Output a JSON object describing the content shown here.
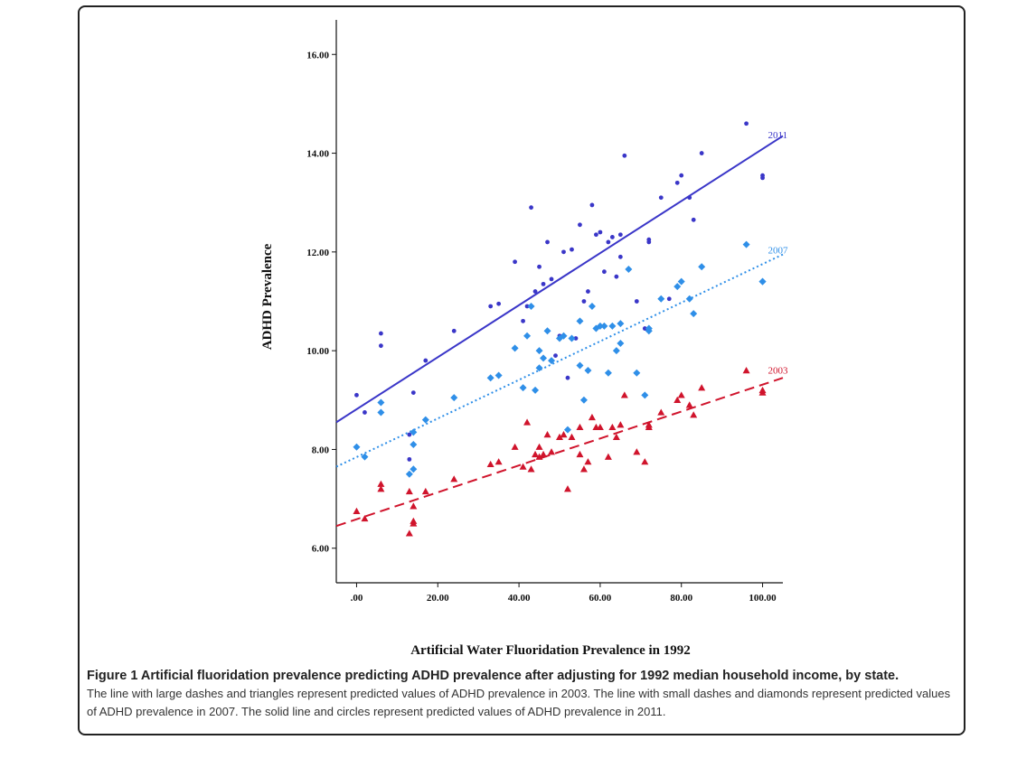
{
  "chart_data": {
    "type": "scatter",
    "xlabel": "Artificial Water Fluoridation Prevalence in 1992",
    "ylabel": "ADHD Prevalence",
    "xlim": [
      -5,
      105
    ],
    "ylim": [
      5.3,
      16.7
    ],
    "x_ticks": [
      0,
      20,
      40,
      60,
      80,
      100
    ],
    "x_tick_labels": [
      ".00",
      "20.00",
      "40.00",
      "60.00",
      "80.00",
      "100.00"
    ],
    "y_ticks": [
      6,
      8,
      10,
      12,
      14,
      16
    ],
    "y_tick_labels": [
      "6.00",
      "8.00",
      "10.00",
      "12.00",
      "14.00",
      "16.00"
    ],
    "grid": false,
    "series": [
      {
        "name": "2011",
        "marker": "circle",
        "color": "#3a36c8",
        "line_style": "solid",
        "fit": {
          "x0": -5,
          "y0": 8.55,
          "x1": 105,
          "y1": 14.35
        },
        "points": [
          [
            0,
            9.1
          ],
          [
            2,
            8.75
          ],
          [
            6,
            10.1
          ],
          [
            6,
            10.35
          ],
          [
            13,
            7.8
          ],
          [
            13,
            8.3
          ],
          [
            14,
            9.15
          ],
          [
            17,
            9.8
          ],
          [
            24,
            10.4
          ],
          [
            33,
            10.9
          ],
          [
            35,
            10.95
          ],
          [
            39,
            11.8
          ],
          [
            41,
            10.6
          ],
          [
            42,
            10.9
          ],
          [
            43,
            12.9
          ],
          [
            44,
            11.2
          ],
          [
            45,
            11.7
          ],
          [
            46,
            11.35
          ],
          [
            47,
            12.2
          ],
          [
            48,
            11.45
          ],
          [
            49,
            9.9
          ],
          [
            50,
            10.3
          ],
          [
            51,
            12.0
          ],
          [
            52,
            9.45
          ],
          [
            53,
            12.05
          ],
          [
            54,
            10.25
          ],
          [
            55,
            12.55
          ],
          [
            56,
            11.0
          ],
          [
            57,
            11.2
          ],
          [
            58,
            12.95
          ],
          [
            59,
            12.35
          ],
          [
            60,
            12.4
          ],
          [
            61,
            11.6
          ],
          [
            62,
            12.2
          ],
          [
            63,
            12.3
          ],
          [
            64,
            11.5
          ],
          [
            65,
            12.35
          ],
          [
            65,
            11.9
          ],
          [
            66,
            13.95
          ],
          [
            69,
            11.0
          ],
          [
            71,
            10.45
          ],
          [
            72,
            12.2
          ],
          [
            72,
            12.25
          ],
          [
            75,
            13.1
          ],
          [
            77,
            11.05
          ],
          [
            79,
            13.4
          ],
          [
            80,
            13.55
          ],
          [
            82,
            13.1
          ],
          [
            83,
            12.65
          ],
          [
            85,
            14.0
          ],
          [
            96,
            14.6
          ],
          [
            100,
            13.5
          ],
          [
            100,
            13.55
          ]
        ]
      },
      {
        "name": "2007",
        "marker": "diamond",
        "color": "#2f8fe8",
        "line_style": "dotted",
        "fit": {
          "x0": -5,
          "y0": 7.65,
          "x1": 105,
          "y1": 11.95
        },
        "points": [
          [
            0,
            8.05
          ],
          [
            2,
            7.85
          ],
          [
            6,
            8.75
          ],
          [
            6,
            8.95
          ],
          [
            13,
            7.5
          ],
          [
            14,
            7.6
          ],
          [
            14,
            8.1
          ],
          [
            14,
            8.35
          ],
          [
            17,
            8.6
          ],
          [
            24,
            9.05
          ],
          [
            33,
            9.45
          ],
          [
            35,
            9.5
          ],
          [
            39,
            10.05
          ],
          [
            41,
            9.25
          ],
          [
            42,
            10.3
          ],
          [
            43,
            10.9
          ],
          [
            44,
            9.2
          ],
          [
            45,
            9.65
          ],
          [
            45,
            10.0
          ],
          [
            46,
            9.85
          ],
          [
            47,
            10.4
          ],
          [
            48,
            9.8
          ],
          [
            50,
            10.25
          ],
          [
            51,
            10.3
          ],
          [
            52,
            8.4
          ],
          [
            53,
            10.25
          ],
          [
            55,
            10.6
          ],
          [
            55,
            9.7
          ],
          [
            56,
            9.0
          ],
          [
            57,
            9.6
          ],
          [
            58,
            10.9
          ],
          [
            59,
            10.45
          ],
          [
            60,
            10.5
          ],
          [
            61,
            10.5
          ],
          [
            62,
            9.55
          ],
          [
            63,
            10.5
          ],
          [
            64,
            10.0
          ],
          [
            65,
            10.15
          ],
          [
            65,
            10.55
          ],
          [
            67,
            11.65
          ],
          [
            69,
            9.55
          ],
          [
            71,
            9.1
          ],
          [
            72,
            10.4
          ],
          [
            72,
            10.45
          ],
          [
            75,
            11.05
          ],
          [
            79,
            11.3
          ],
          [
            80,
            11.4
          ],
          [
            82,
            11.05
          ],
          [
            83,
            10.75
          ],
          [
            85,
            11.7
          ],
          [
            96,
            12.15
          ],
          [
            100,
            11.4
          ],
          [
            100,
            11.4
          ]
        ]
      },
      {
        "name": "2003",
        "marker": "triangle",
        "color": "#d0142c",
        "line_style": "dashed",
        "fit": {
          "x0": -5,
          "y0": 6.45,
          "x1": 105,
          "y1": 9.45
        },
        "points": [
          [
            0,
            6.75
          ],
          [
            2,
            6.6
          ],
          [
            6,
            7.2
          ],
          [
            6,
            7.3
          ],
          [
            13,
            6.3
          ],
          [
            13,
            7.15
          ],
          [
            14,
            6.5
          ],
          [
            14,
            6.55
          ],
          [
            14,
            6.85
          ],
          [
            17,
            7.15
          ],
          [
            24,
            7.4
          ],
          [
            33,
            7.7
          ],
          [
            35,
            7.75
          ],
          [
            39,
            8.05
          ],
          [
            41,
            7.65
          ],
          [
            42,
            8.55
          ],
          [
            43,
            7.6
          ],
          [
            44,
            7.9
          ],
          [
            45,
            8.05
          ],
          [
            45,
            7.85
          ],
          [
            46,
            7.9
          ],
          [
            47,
            8.3
          ],
          [
            48,
            7.95
          ],
          [
            50,
            8.25
          ],
          [
            51,
            8.3
          ],
          [
            52,
            7.2
          ],
          [
            53,
            8.25
          ],
          [
            55,
            8.45
          ],
          [
            55,
            7.9
          ],
          [
            56,
            7.6
          ],
          [
            57,
            7.75
          ],
          [
            58,
            8.65
          ],
          [
            59,
            8.45
          ],
          [
            60,
            8.45
          ],
          [
            62,
            7.85
          ],
          [
            63,
            8.45
          ],
          [
            64,
            8.25
          ],
          [
            65,
            8.5
          ],
          [
            66,
            9.1
          ],
          [
            69,
            7.95
          ],
          [
            71,
            7.75
          ],
          [
            72,
            8.5
          ],
          [
            72,
            8.45
          ],
          [
            75,
            8.75
          ],
          [
            79,
            9.0
          ],
          [
            80,
            9.1
          ],
          [
            82,
            8.9
          ],
          [
            83,
            8.7
          ],
          [
            85,
            9.25
          ],
          [
            96,
            9.6
          ],
          [
            100,
            9.15
          ],
          [
            100,
            9.2
          ]
        ]
      }
    ]
  },
  "caption": {
    "title": "Figure 1 Artificial fluoridation prevalence predicting ADHD prevalence after adjusting for 1992 median household income, by state.",
    "body": "The line with large dashes and triangles represent predicted values of ADHD prevalence in 2003. The line with small dashes and diamonds represent predicted values of ADHD prevalence in 2007. The solid line and circles represent predicted values of ADHD prevalence in 2011."
  }
}
